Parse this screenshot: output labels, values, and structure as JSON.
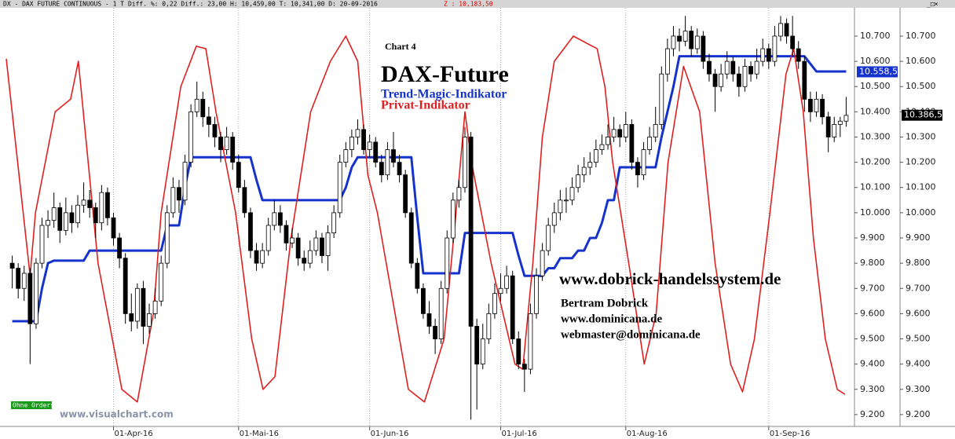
{
  "header": {
    "text": "DX - DAX FUTURE CONTINUOUS - 1 T Diff. %: 0,22 Diff.: 23,00 H: 10,459,00 T: 10,341,00 D: 20-09-2016",
    "z": "Z : 10,183,50"
  },
  "chart_data": {
    "type": "candlestick",
    "subtitle": "Chart 4",
    "title": "DAX-Future",
    "candles": [
      [
        9800,
        9830,
        9700,
        9780
      ],
      [
        9780,
        9800,
        9660,
        9700
      ],
      [
        9700,
        9790,
        9650,
        9760
      ],
      [
        9760,
        9780,
        9400,
        9560
      ],
      [
        9560,
        9820,
        9540,
        9800
      ],
      [
        9800,
        9980,
        9780,
        9950
      ],
      [
        9950,
        10010,
        9900,
        9970
      ],
      [
        9970,
        10080,
        9940,
        10020
      ],
      [
        10020,
        10040,
        9880,
        9930
      ],
      [
        9930,
        10060,
        9910,
        10000
      ],
      [
        10000,
        10030,
        9920,
        9960
      ],
      [
        9960,
        10070,
        9940,
        10030
      ],
      [
        10030,
        10120,
        10000,
        10050
      ],
      [
        10050,
        10090,
        9980,
        10020
      ],
      [
        10020,
        10040,
        9900,
        9960
      ],
      [
        9960,
        10110,
        9930,
        10080
      ],
      [
        10080,
        10100,
        9950,
        9980
      ],
      [
        9980,
        10000,
        9870,
        9900
      ],
      [
        9900,
        9920,
        9780,
        9820
      ],
      [
        9820,
        9840,
        9560,
        9600
      ],
      [
        9600,
        9680,
        9530,
        9570
      ],
      [
        9570,
        9720,
        9540,
        9700
      ],
      [
        9700,
        9730,
        9480,
        9550
      ],
      [
        9550,
        9640,
        9520,
        9600
      ],
      [
        9600,
        9700,
        9580,
        9650
      ],
      [
        9650,
        9830,
        9630,
        9800
      ],
      [
        9800,
        10030,
        9780,
        10000
      ],
      [
        10000,
        10140,
        9980,
        10100
      ],
      [
        10100,
        10130,
        10000,
        10050
      ],
      [
        10050,
        10230,
        10030,
        10200
      ],
      [
        10200,
        10430,
        10180,
        10400
      ],
      [
        10400,
        10520,
        10380,
        10450
      ],
      [
        10450,
        10480,
        10340,
        10380
      ],
      [
        10380,
        10420,
        10300,
        10350
      ],
      [
        10350,
        10380,
        10260,
        10300
      ],
      [
        10300,
        10320,
        10200,
        10250
      ],
      [
        10250,
        10340,
        10230,
        10300
      ],
      [
        10300,
        10320,
        10170,
        10200
      ],
      [
        10200,
        10230,
        10080,
        10100
      ],
      [
        10100,
        10130,
        9980,
        10000
      ],
      [
        10000,
        10020,
        9820,
        9850
      ],
      [
        9850,
        9880,
        9770,
        9800
      ],
      [
        9800,
        9880,
        9780,
        9850
      ],
      [
        9850,
        9980,
        9830,
        9950
      ],
      [
        9950,
        10050,
        9930,
        10000
      ],
      [
        10000,
        10030,
        9920,
        9950
      ],
      [
        9950,
        9970,
        9850,
        9880
      ],
      [
        9880,
        9940,
        9860,
        9900
      ],
      [
        9900,
        9920,
        9790,
        9820
      ],
      [
        9820,
        9850,
        9770,
        9800
      ],
      [
        9800,
        9890,
        9780,
        9850
      ],
      [
        9850,
        9930,
        9830,
        9900
      ],
      [
        9900,
        9920,
        9800,
        9830
      ],
      [
        9830,
        9950,
        9770,
        9920
      ],
      [
        9920,
        10030,
        9900,
        10000
      ],
      [
        10000,
        10230,
        9980,
        10200
      ],
      [
        10200,
        10280,
        10180,
        10250
      ],
      [
        10250,
        10330,
        10220,
        10300
      ],
      [
        10300,
        10370,
        10270,
        10330
      ],
      [
        10330,
        10350,
        10230,
        10250
      ],
      [
        10250,
        10310,
        10220,
        10280
      ],
      [
        10280,
        10300,
        10180,
        10200
      ],
      [
        10200,
        10230,
        10120,
        10150
      ],
      [
        10150,
        10280,
        10130,
        10250
      ],
      [
        10250,
        10320,
        10180,
        10200
      ],
      [
        10200,
        10230,
        10120,
        10150
      ],
      [
        10150,
        10170,
        9980,
        10000
      ],
      [
        10000,
        10020,
        9780,
        9800
      ],
      [
        9800,
        9820,
        9680,
        9700
      ],
      [
        9700,
        9720,
        9580,
        9600
      ],
      [
        9600,
        9650,
        9520,
        9550
      ],
      [
        9550,
        9580,
        9440,
        9500
      ],
      [
        9500,
        9730,
        9480,
        9700
      ],
      [
        9700,
        9930,
        9680,
        9900
      ],
      [
        9900,
        10080,
        9880,
        10050
      ],
      [
        10050,
        10130,
        10020,
        10100
      ],
      [
        10100,
        10340,
        10080,
        10300
      ],
      [
        10300,
        10320,
        9180,
        9550
      ],
      [
        9550,
        9580,
        9220,
        9400
      ],
      [
        9400,
        9560,
        9380,
        9500
      ],
      [
        9500,
        9640,
        9480,
        9600
      ],
      [
        9600,
        9720,
        9580,
        9680
      ],
      [
        9680,
        9760,
        9650,
        9700
      ],
      [
        9700,
        9790,
        9680,
        9750
      ],
      [
        9750,
        9770,
        9480,
        9500
      ],
      [
        9500,
        9530,
        9380,
        9400
      ],
      [
        9400,
        9420,
        9290,
        9380
      ],
      [
        9380,
        9640,
        9360,
        9600
      ],
      [
        9600,
        9780,
        9580,
        9750
      ],
      [
        9750,
        9880,
        9730,
        9850
      ],
      [
        9850,
        9980,
        9830,
        9950
      ],
      [
        9950,
        10040,
        9920,
        10000
      ],
      [
        10000,
        10090,
        9970,
        10050
      ],
      [
        10050,
        10100,
        10000,
        10050
      ],
      [
        10050,
        10140,
        10030,
        10100
      ],
      [
        10100,
        10190,
        10080,
        10150
      ],
      [
        10150,
        10220,
        10120,
        10180
      ],
      [
        10180,
        10240,
        10150,
        10200
      ],
      [
        10200,
        10290,
        10180,
        10250
      ],
      [
        10250,
        10310,
        10230,
        10270
      ],
      [
        10270,
        10350,
        10250,
        10300
      ],
      [
        10300,
        10380,
        10280,
        10330
      ],
      [
        10330,
        10350,
        10260,
        10300
      ],
      [
        10300,
        10400,
        10280,
        10350
      ],
      [
        10350,
        10370,
        10170,
        10200
      ],
      [
        10200,
        10220,
        10100,
        10150
      ],
      [
        10150,
        10280,
        10130,
        10250
      ],
      [
        10250,
        10340,
        10230,
        10300
      ],
      [
        10300,
        10420,
        10280,
        10350
      ],
      [
        10350,
        10580,
        10330,
        10550
      ],
      [
        10550,
        10690,
        10520,
        10650
      ],
      [
        10650,
        10740,
        10620,
        10700
      ],
      [
        10700,
        10730,
        10640,
        10680
      ],
      [
        10680,
        10780,
        10660,
        10720
      ],
      [
        10720,
        10740,
        10620,
        10650
      ],
      [
        10650,
        10730,
        10630,
        10700
      ],
      [
        10700,
        10720,
        10570,
        10600
      ],
      [
        10600,
        10630,
        10520,
        10550
      ],
      [
        10550,
        10570,
        10400,
        10500
      ],
      [
        10500,
        10590,
        10480,
        10550
      ],
      [
        10550,
        10640,
        10530,
        10600
      ],
      [
        10600,
        10620,
        10520,
        10550
      ],
      [
        10550,
        10580,
        10460,
        10500
      ],
      [
        10500,
        10610,
        10480,
        10580
      ],
      [
        10580,
        10600,
        10520,
        10550
      ],
      [
        10550,
        10650,
        10530,
        10600
      ],
      [
        10600,
        10690,
        10580,
        10650
      ],
      [
        10650,
        10670,
        10570,
        10600
      ],
      [
        10600,
        10740,
        10580,
        10700
      ],
      [
        10700,
        10780,
        10680,
        10750
      ],
      [
        10750,
        10770,
        10670,
        10700
      ],
      [
        10700,
        10780,
        10620,
        10650
      ],
      [
        10650,
        10680,
        10570,
        10600
      ],
      [
        10600,
        10620,
        10400,
        10450
      ],
      [
        10450,
        10480,
        10360,
        10400
      ],
      [
        10400,
        10480,
        10380,
        10450
      ],
      [
        10450,
        10470,
        10350,
        10380
      ],
      [
        10380,
        10400,
        10240,
        10300
      ],
      [
        10300,
        10380,
        10280,
        10350
      ],
      [
        10350,
        10380,
        10300,
        10363
      ],
      [
        10363,
        10459,
        10341,
        10386
      ]
    ],
    "up_color": "#ffffff",
    "down_color": "#000000",
    "series": [
      {
        "name": "Trend-Magic-Indikator",
        "color": "#1533cc",
        "x": [
          0,
          4,
          5,
          6,
          7,
          12,
          13,
          25,
          26,
          28,
          29,
          30,
          40,
          41,
          42,
          55,
          56,
          57,
          58,
          67,
          68,
          69,
          70,
          75,
          76,
          77,
          84,
          85,
          86,
          89,
          90,
          91,
          92,
          94,
          95,
          96,
          97,
          98,
          99,
          100,
          101,
          102,
          108,
          109,
          110,
          111,
          112,
          133,
          134,
          135,
          140
        ],
        "values": [
          9570,
          9570,
          9700,
          9800,
          9810,
          9810,
          9850,
          9850,
          9950,
          9950,
          10100,
          10220,
          10220,
          10130,
          10050,
          10050,
          10100,
          10180,
          10220,
          10220,
          9980,
          9760,
          9760,
          9760,
          9920,
          9920,
          9920,
          9830,
          9750,
          9750,
          9780,
          9780,
          9820,
          9820,
          9850,
          9850,
          9900,
          9900,
          9960,
          10050,
          10050,
          10180,
          10180,
          10300,
          10400,
          10500,
          10620,
          10620,
          10590,
          10560,
          10560
        ]
      },
      {
        "name": "Privat-Indikator",
        "color": "#e02020",
        "x": [
          -1,
          3,
          3.9,
          7.2,
          9.8,
          11.1,
          14.4,
          18.4,
          21,
          23.7,
          25,
          28.3,
          30.9,
          32.5,
          34.2,
          37.5,
          40.2,
          42.1,
          44.1,
          46.8,
          50.1,
          53.4,
          56,
          58,
          59.7,
          61.3,
          66.5,
          69.2,
          72.5,
          74.5,
          76,
          77.1,
          80.4,
          82.4,
          84.4,
          85.7,
          87.4,
          89,
          91,
          94.2,
          98.2,
          99.5,
          100.8,
          103.5,
          106.1,
          108.1,
          110.1,
          112.7,
          115.4,
          118,
          120.6,
          122.6,
          124.6,
          127.2,
          129.9,
          131.2,
          132.8,
          134.5,
          136.5,
          138.5,
          139.8
        ],
        "values": [
          10610,
          9750,
          10000,
          10400,
          10450,
          10600,
          9800,
          9300,
          9250,
          9600,
          10000,
          10500,
          10660,
          10650,
          10400,
          10000,
          9500,
          9300,
          9350,
          9900,
          10400,
          10600,
          10700,
          10600,
          10150,
          10000,
          9300,
          9250,
          9500,
          10000,
          10400,
          10200,
          9800,
          9600,
          9400,
          9380,
          9800,
          10300,
          10600,
          10700,
          10650,
          10500,
          10200,
          9800,
          9400,
          9600,
          10200,
          10580,
          10400,
          9800,
          9400,
          9290,
          9500,
          10000,
          10550,
          10650,
          10400,
          9900,
          9500,
          9300,
          9280
        ]
      }
    ],
    "last_labels": [
      {
        "value": 10558.5,
        "label": "10.558,5",
        "color": "#1533cc"
      },
      {
        "value": 10386.5,
        "label": "10.386,5",
        "color": "#000000"
      }
    ],
    "annotations": [
      "www.dobrick-handelssystem.de",
      "Bertram Dobrick",
      "www.dominicana.de",
      "webmaster@dominicana.de"
    ],
    "badge": "Ohne Orders",
    "watermark": "www.visualchart.com",
    "xlim": [
      -1,
      141
    ],
    "xticks": [
      {
        "value": 17,
        "label": "01-Apr-16"
      },
      {
        "value": 38,
        "label": "01-Mai-16"
      },
      {
        "value": 60,
        "label": "01-Jun-16"
      },
      {
        "value": 82,
        "label": "01-Jul-16"
      },
      {
        "value": 103,
        "label": "01-Aug-16"
      },
      {
        "value": 127,
        "label": "01-Sep-16"
      }
    ],
    "ylim": [
      9153,
      10812
    ],
    "yticks": [
      {
        "value": 9200,
        "label": "9.200"
      },
      {
        "value": 9300,
        "label": "9.300"
      },
      {
        "value": 9400,
        "label": "9.400"
      },
      {
        "value": 9500,
        "label": "9.500"
      },
      {
        "value": 9600,
        "label": "9.600"
      },
      {
        "value": 9700,
        "label": "9.700"
      },
      {
        "value": 9800,
        "label": "9.800"
      },
      {
        "value": 9900,
        "label": "9.900"
      },
      {
        "value": 10000,
        "label": "10.000"
      },
      {
        "value": 10100,
        "label": "10.100"
      },
      {
        "value": 10200,
        "label": "10.200"
      },
      {
        "value": 10300,
        "label": "10.300"
      },
      {
        "value": 10400,
        "label": "10.400"
      },
      {
        "value": 10500,
        "label": "10.500"
      },
      {
        "value": 10600,
        "label": "10.600"
      },
      {
        "value": 10700,
        "label": "10.700"
      }
    ],
    "grid": "x"
  }
}
